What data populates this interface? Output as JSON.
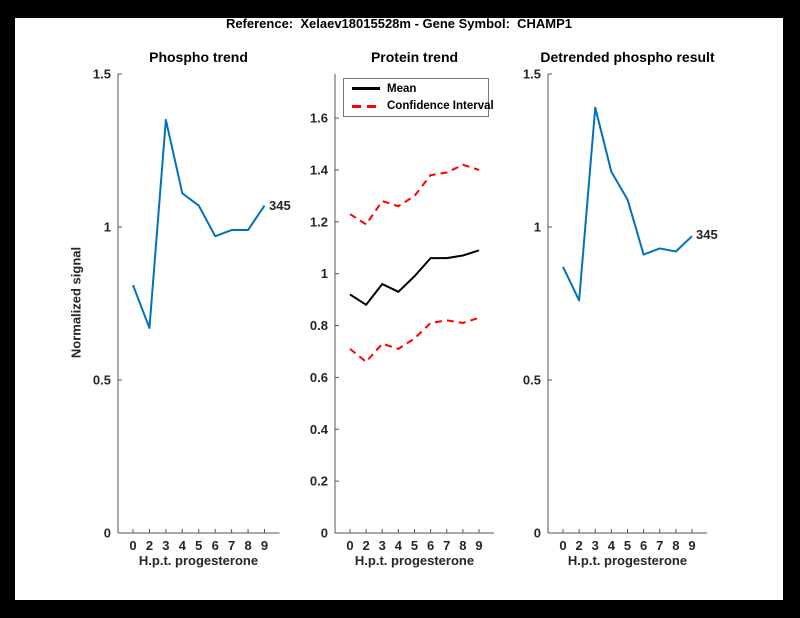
{
  "figure": {
    "title": "Reference:  Xelaev18015528m - Gene Symbol:  CHAMP1"
  },
  "colors": {
    "line_blue": "#0072BD",
    "ci_red": "#ff0000",
    "mean_black": "#000000",
    "axis": "#555555",
    "tick_text": "#262626",
    "background": "#000000",
    "canvas": "#ffffff"
  },
  "legend": {
    "items": [
      {
        "label": "Mean",
        "color": "#000000",
        "style": "solid"
      },
      {
        "label": "Confidence Interval",
        "color": "#ff0000",
        "style": "dashed"
      }
    ]
  },
  "chart_data": [
    {
      "type": "line",
      "title": "Phospho trend",
      "xlabel": "H.p.t. progesterone",
      "ylabel": "Normalized signal",
      "categories": [
        "0",
        "2",
        "3",
        "4",
        "5",
        "6",
        "7",
        "8",
        "9"
      ],
      "yticks": [
        0,
        0.5,
        1,
        1.5
      ],
      "ylim": [
        0,
        1.5
      ],
      "grid": false,
      "legend_position": "none",
      "series": [
        {
          "name": "phospho-trend",
          "color": "#0072BD",
          "style": "solid",
          "values": [
            0.81,
            0.67,
            1.35,
            1.11,
            1.07,
            0.97,
            0.99,
            0.99,
            1.07
          ]
        }
      ],
      "end_label": "345"
    },
    {
      "type": "line",
      "title": "Protein trend",
      "xlabel": "H.p.t. progesterone",
      "ylabel": "",
      "categories": [
        "0",
        "2",
        "3",
        "4",
        "5",
        "6",
        "7",
        "8",
        "9"
      ],
      "yticks": [
        0,
        0.2,
        0.4,
        0.6,
        0.8,
        1,
        1.2,
        1.4,
        1.6
      ],
      "ylim": [
        0,
        1.77
      ],
      "grid": false,
      "legend_position": "north",
      "series": [
        {
          "name": "mean",
          "legend": "Mean",
          "color": "#000000",
          "style": "solid",
          "values": [
            0.92,
            0.88,
            0.96,
            0.93,
            0.99,
            1.06,
            1.06,
            1.07,
            1.09
          ]
        },
        {
          "name": "ci-upper",
          "legend": "Confidence Interval",
          "color": "#ff0000",
          "style": "dashed",
          "values": [
            1.23,
            1.19,
            1.28,
            1.26,
            1.3,
            1.38,
            1.39,
            1.42,
            1.4
          ]
        },
        {
          "name": "ci-lower",
          "legend": "Confidence Interval",
          "color": "#ff0000",
          "style": "dashed",
          "values": [
            0.71,
            0.66,
            0.73,
            0.71,
            0.75,
            0.81,
            0.82,
            0.81,
            0.83
          ]
        }
      ]
    },
    {
      "type": "line",
      "title": "Detrended phospho result",
      "xlabel": "H.p.t. progesterone",
      "ylabel": "",
      "categories": [
        "0",
        "2",
        "3",
        "4",
        "5",
        "6",
        "7",
        "8",
        "9"
      ],
      "yticks": [
        0,
        0.5,
        1,
        1.5
      ],
      "ylim": [
        0,
        1.5
      ],
      "grid": false,
      "legend_position": "none",
      "series": [
        {
          "name": "detrended-phospho",
          "color": "#0072BD",
          "style": "solid",
          "values": [
            0.87,
            0.76,
            1.39,
            1.18,
            1.09,
            0.91,
            0.93,
            0.92,
            0.97
          ]
        }
      ],
      "end_label": "345"
    }
  ]
}
